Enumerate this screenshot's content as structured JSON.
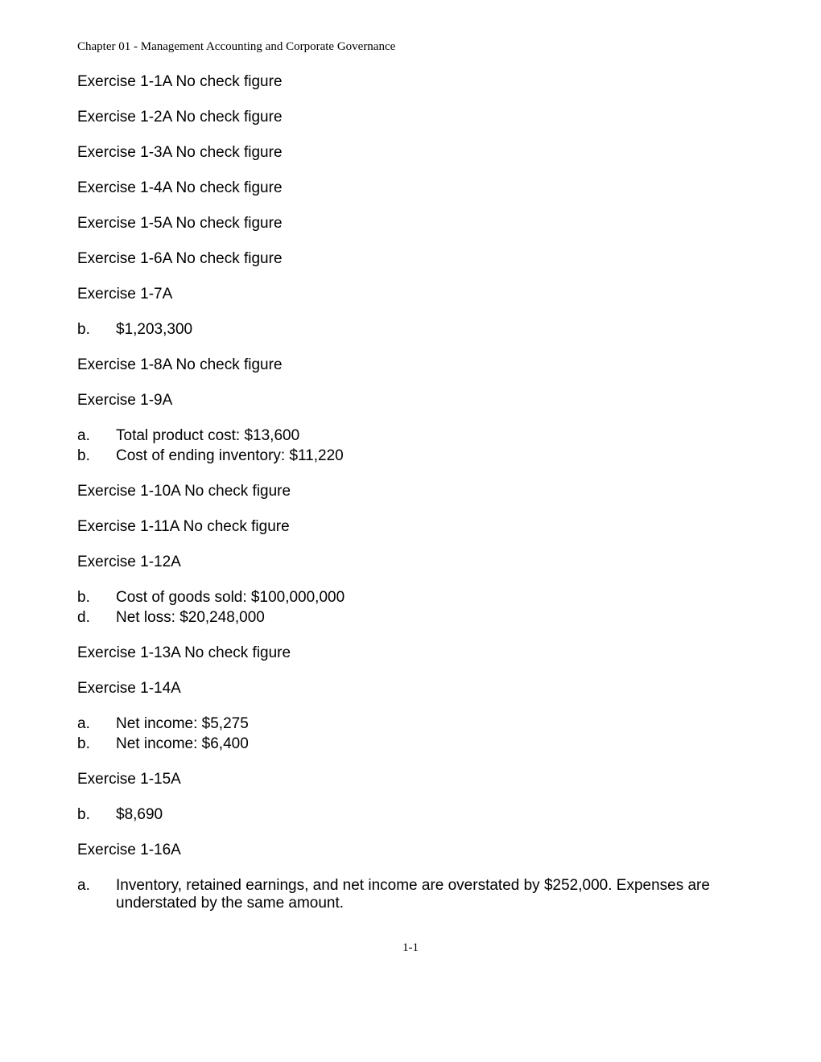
{
  "chapter_header": "Chapter 01 - Management Accounting and Corporate Governance",
  "exercises": [
    {
      "title": "Exercise 1-1A  No check figure",
      "subs": []
    },
    {
      "title": "Exercise 1-2A  No check figure",
      "subs": []
    },
    {
      "title": "Exercise 1-3A  No check figure",
      "subs": []
    },
    {
      "title": "Exercise 1-4A  No check figure",
      "subs": []
    },
    {
      "title": "Exercise 1-5A  No check figure",
      "subs": []
    },
    {
      "title": "Exercise 1-6A  No check figure",
      "subs": []
    },
    {
      "title": "Exercise 1-7A",
      "subs": [
        {
          "label": "b.",
          "text": "$1,203,300"
        }
      ]
    },
    {
      "title": "Exercise 1-8A  No check figure",
      "subs": []
    },
    {
      "title": "Exercise 1-9A",
      "subs": [
        {
          "label": "a.",
          "text": "Total product cost: $13,600"
        },
        {
          "label": "b.",
          "text": "Cost of ending inventory: $11,220"
        }
      ]
    },
    {
      "title": "Exercise 1-10A  No check figure",
      "subs": []
    },
    {
      "title": "Exercise 1-11A  No check figure",
      "subs": []
    },
    {
      "title": "Exercise 1-12A",
      "subs": [
        {
          "label": "b.",
          "text": "Cost of goods sold: $100,000,000"
        },
        {
          "label": "d.",
          "text": "Net loss: $20,248,000"
        }
      ]
    },
    {
      "title": "Exercise 1-13A  No check figure",
      "subs": []
    },
    {
      "title": "Exercise 1-14A",
      "subs": [
        {
          "label": "a.",
          "text": "Net income:  $5,275"
        },
        {
          "label": "b.",
          "text": "Net income:  $6,400"
        }
      ]
    },
    {
      "title": "Exercise 1-15A",
      "subs": [
        {
          "label": "b.",
          "text": "$8,690"
        }
      ]
    },
    {
      "title": "Exercise 1-16A",
      "subs": [
        {
          "label": "a.",
          "text": "Inventory, retained earnings, and net income are overstated by $252,000. Expenses are understated by the same amount."
        }
      ]
    }
  ],
  "page_number": "1-1"
}
